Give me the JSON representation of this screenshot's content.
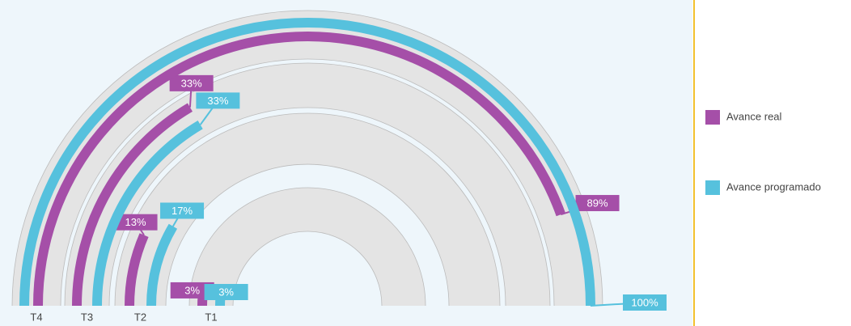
{
  "chart_data": {
    "type": "radial-bar",
    "categories": [
      "T1",
      "T2",
      "T3",
      "T4"
    ],
    "xlim": [
      0,
      100
    ],
    "series": [
      {
        "name": "Avance real",
        "color": "#a54fa8",
        "values": [
          3,
          13,
          33,
          89
        ],
        "value_labels": [
          "3%",
          "13%",
          "33%",
          "89%"
        ]
      },
      {
        "name": "Avance programado",
        "color": "#56c1dd",
        "values": [
          3,
          17,
          33,
          100
        ],
        "value_labels": [
          "3%",
          "17%",
          "33%",
          "100%"
        ]
      }
    ],
    "legend": "right"
  }
}
